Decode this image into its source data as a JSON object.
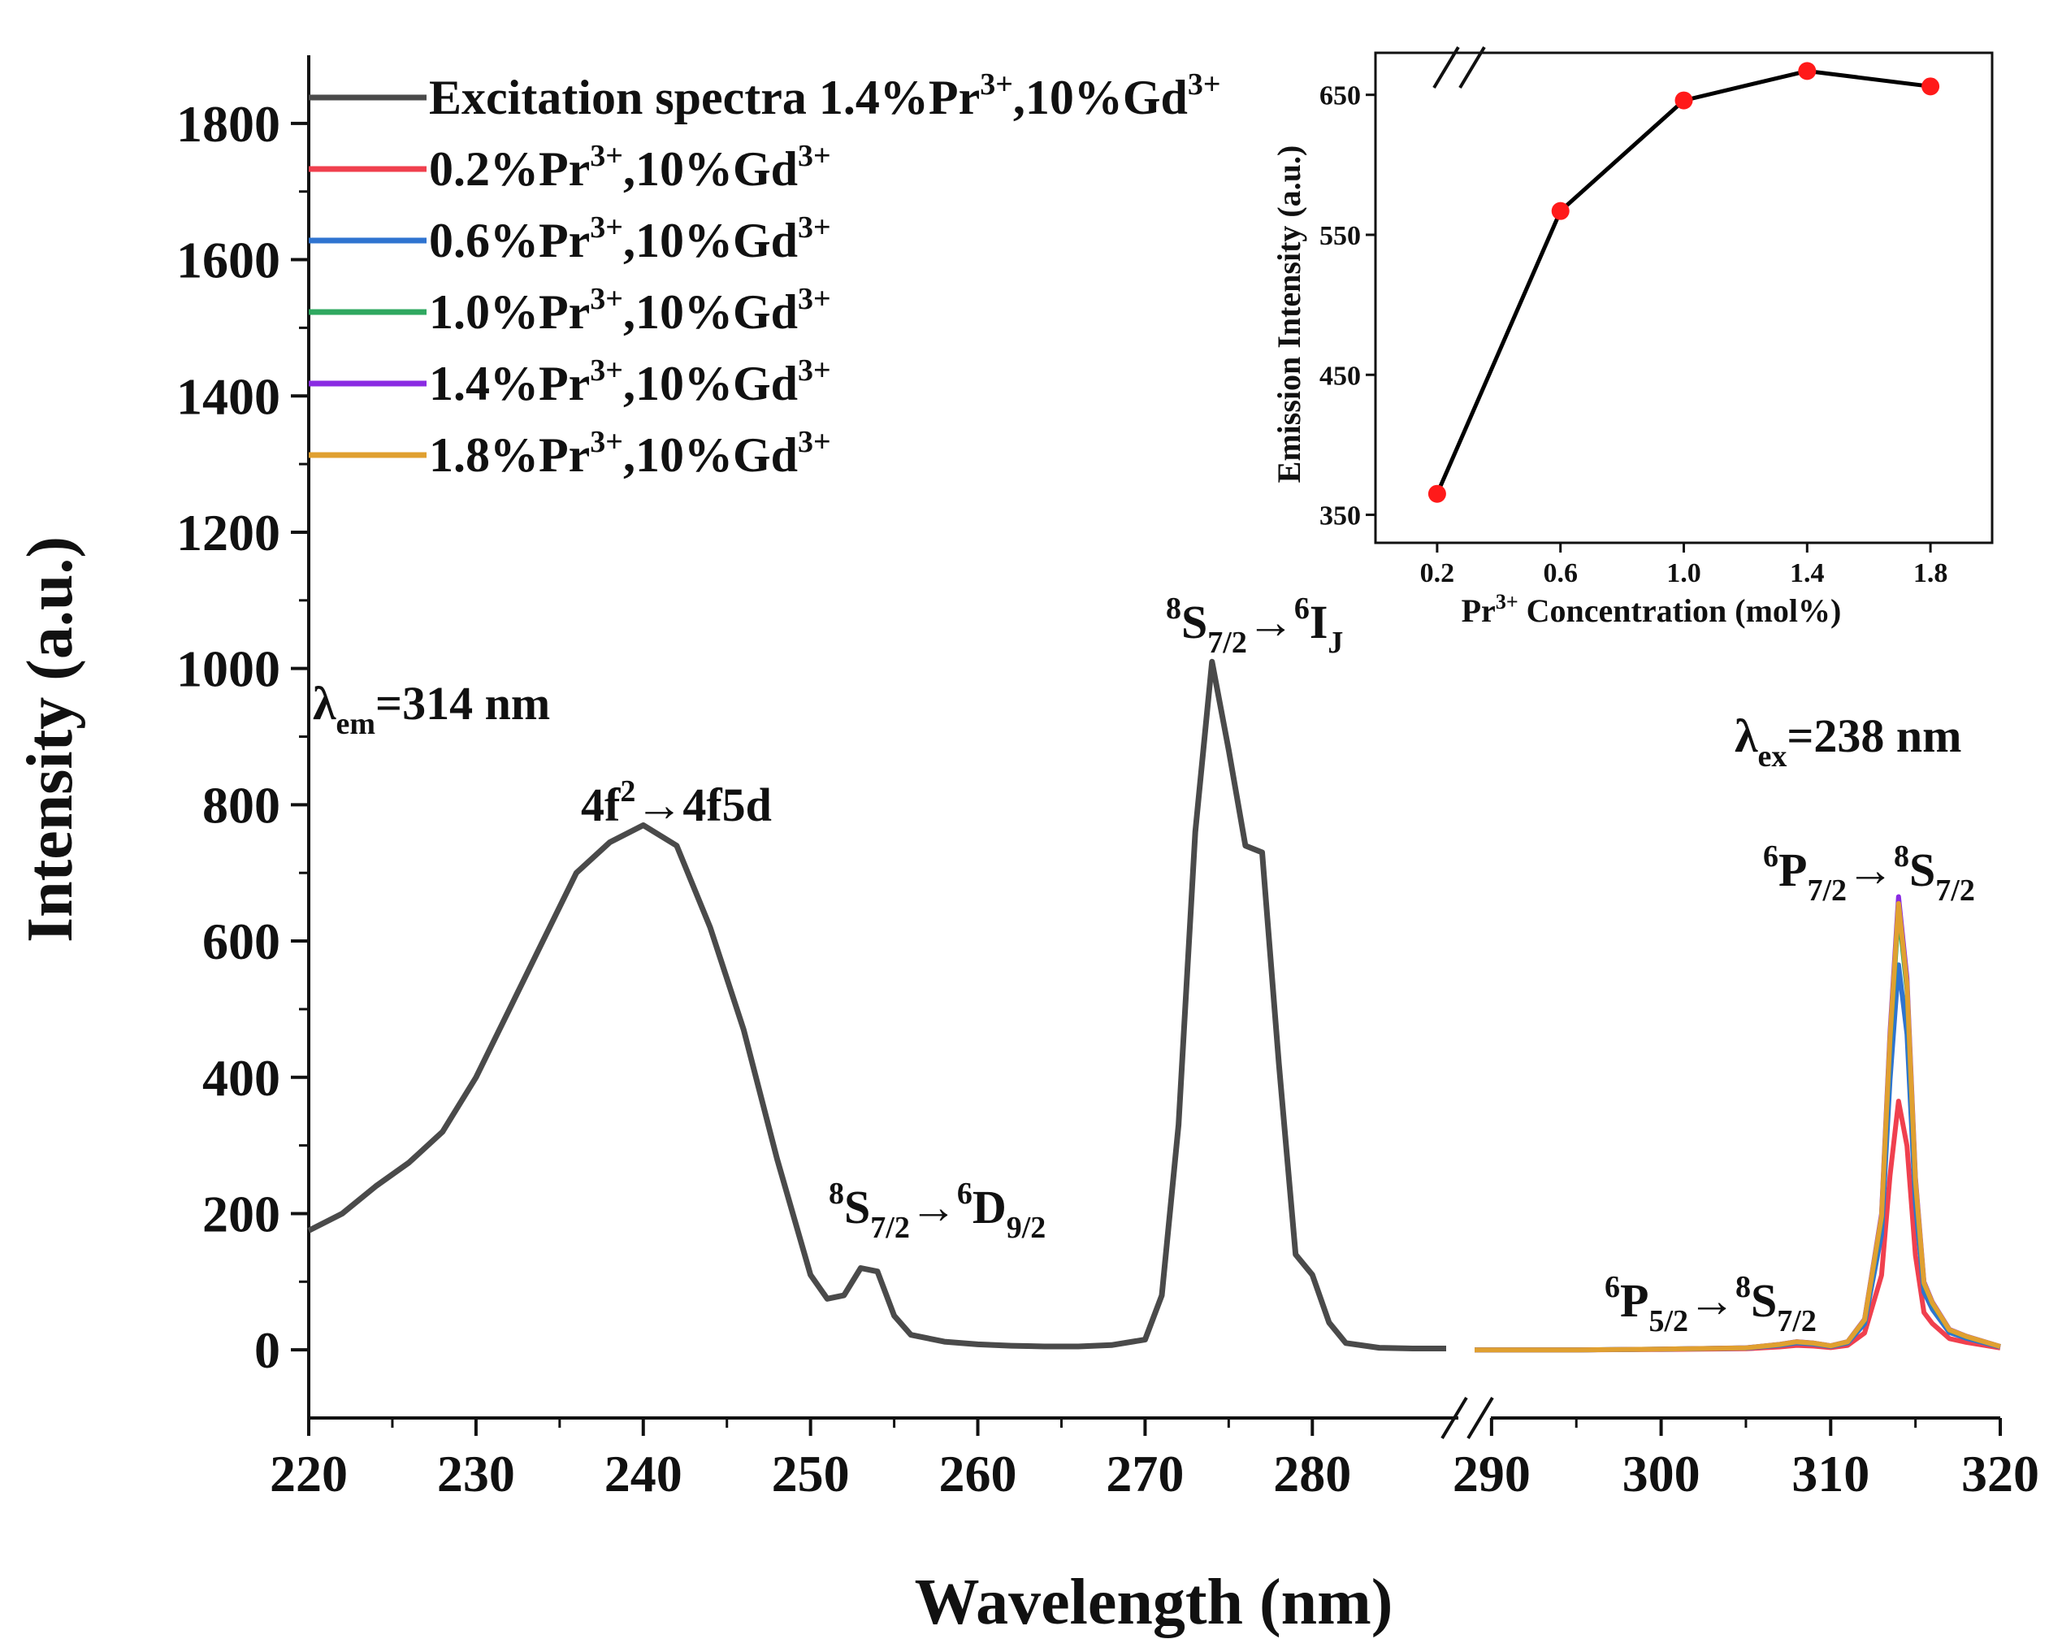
{
  "chart_data": [
    {
      "type": "line",
      "role": "main",
      "xlabel": "Wavelength (nm)",
      "ylabel": "Intensity (a.u.)",
      "xlim": [
        220,
        320
      ],
      "x_break": [
        288,
        289
      ],
      "ylim": [
        -100,
        1900
      ],
      "xticks": [
        "220",
        "230",
        "240",
        "250",
        "260",
        "270",
        "280",
        "290",
        "300",
        "310",
        "320"
      ],
      "yticks": [
        "0",
        "200",
        "400",
        "600",
        "800",
        "1000",
        "1200",
        "1400",
        "1600",
        "1800"
      ],
      "legend": {
        "placement": "top-left",
        "entries": [
          {
            "name": "Excitation spectra 1.4%Pr",
            "sup": "3+",
            "tail": ",10%Gd",
            "sup2": "3+",
            "color": "#4a4a4a"
          },
          {
            "name": "0.2%Pr",
            "sup": "3+",
            "tail": ",10%Gd",
            "sup2": "3+",
            "color": "#f0404e"
          },
          {
            "name": "0.6%Pr",
            "sup": "3+",
            "tail": ",10%Gd",
            "sup2": "3+",
            "color": "#2f74d0"
          },
          {
            "name": "1.0%Pr",
            "sup": "3+",
            "tail": ",10%Gd",
            "sup2": "3+",
            "color": "#2fa860"
          },
          {
            "name": "1.4%Pr",
            "sup": "3+",
            "tail": ",10%Gd",
            "sup2": "3+",
            "color": "#8a2be2"
          },
          {
            "name": "1.8%Pr",
            "sup": "3+",
            "tail": ",10%Gd",
            "sup2": "3+",
            "color": "#e0a030"
          }
        ]
      },
      "excitation": {
        "name": "Excitation spectra 1.4%Pr3+,10%Gd3+",
        "x": [
          220,
          222,
          224,
          226,
          228,
          230,
          232,
          234,
          236,
          238,
          240,
          242,
          244,
          246,
          248,
          250,
          251,
          252,
          253,
          254,
          255,
          256,
          258,
          260,
          262,
          264,
          266,
          268,
          270,
          271,
          272,
          273,
          274,
          275,
          276,
          277,
          278,
          279,
          280,
          281,
          282,
          284,
          286,
          288
        ],
        "y": [
          175,
          200,
          240,
          275,
          320,
          400,
          500,
          600,
          700,
          745,
          770,
          740,
          620,
          470,
          280,
          110,
          75,
          80,
          120,
          115,
          50,
          22,
          12,
          8,
          6,
          5,
          5,
          7,
          15,
          80,
          330,
          760,
          1010,
          880,
          740,
          730,
          420,
          140,
          110,
          40,
          10,
          3,
          2,
          2
        ]
      },
      "emission": {
        "x": [
          289,
          295,
          300,
          305,
          307,
          308,
          309,
          310,
          311,
          312,
          313,
          313.5,
          314,
          314.5,
          315,
          315.5,
          316,
          317,
          318,
          320
        ],
        "series": [
          {
            "name": "0.2%Pr3+,10%Gd3+",
            "peak": 365,
            "color": "#f0404e"
          },
          {
            "name": "0.6%Pr3+,10%Gd3+",
            "peak": 565,
            "color": "#2f74d0"
          },
          {
            "name": "1.0%Pr3+,10%Gd3+",
            "peak": 645,
            "color": "#2fa860"
          },
          {
            "name": "1.4%Pr3+,10%Gd3+",
            "peak": 665,
            "color": "#8a2be2"
          },
          {
            "name": "1.8%Pr3+,10%Gd3+",
            "peak": 655,
            "color": "#e0a030"
          }
        ],
        "shape": [
          0,
          0,
          1,
          3,
          8,
          12,
          10,
          6,
          12,
          45,
          300,
          700,
          1000,
          820,
          380,
          150,
          70,
          30,
          20,
          5
        ]
      },
      "annotations": {
        "lambda_em": {
          "symbol": "λ",
          "sub": "em",
          "text": "=314 nm"
        },
        "lambda_ex": {
          "symbol": "λ",
          "sub": "ex",
          "text": "=238 nm"
        },
        "band_4f": {
          "pre": "4f",
          "sup": "2",
          "post": "→4f5d"
        },
        "band_6d": {
          "s1": "8",
          "a": "S",
          "sub1": "7/2",
          "arrow": "→",
          "s2": "6",
          "b": "D",
          "sub2": "9/2"
        },
        "band_6i": {
          "s1": "8",
          "a": "S",
          "sub1": "7/2",
          "arrow": "→",
          "s2": "6",
          "b": "I",
          "sub2": "J"
        },
        "band_6p7": {
          "s1": "6",
          "a": "P",
          "sub1": "7/2",
          "arrow": "→",
          "s2": "8",
          "b": "S",
          "sub2": "7/2"
        },
        "band_6p5": {
          "s1": "6",
          "a": "P",
          "sub1": "5/2",
          "arrow": "→",
          "s2": "8",
          "b": "S",
          "sub2": "7/2"
        }
      }
    },
    {
      "type": "line",
      "role": "inset",
      "xlabel": "Concentration (mol%)",
      "xlabel_prefix": "Pr",
      "xlabel_sup": "3+",
      "ylabel": "Emission Intensity (a.u.)",
      "x": [
        0.2,
        0.6,
        1.0,
        1.4,
        1.8
      ],
      "y": [
        365,
        567,
        646,
        667,
        656
      ],
      "xlim": [
        0,
        2.0
      ],
      "ylim": [
        330,
        680
      ],
      "xticks": [
        "0.2",
        "0.6",
        "1.0",
        "1.4",
        "1.8"
      ],
      "yticks": [
        "350",
        "450",
        "550",
        "650"
      ],
      "line_color": "#000000",
      "marker_color": "#ff1a1a"
    }
  ]
}
